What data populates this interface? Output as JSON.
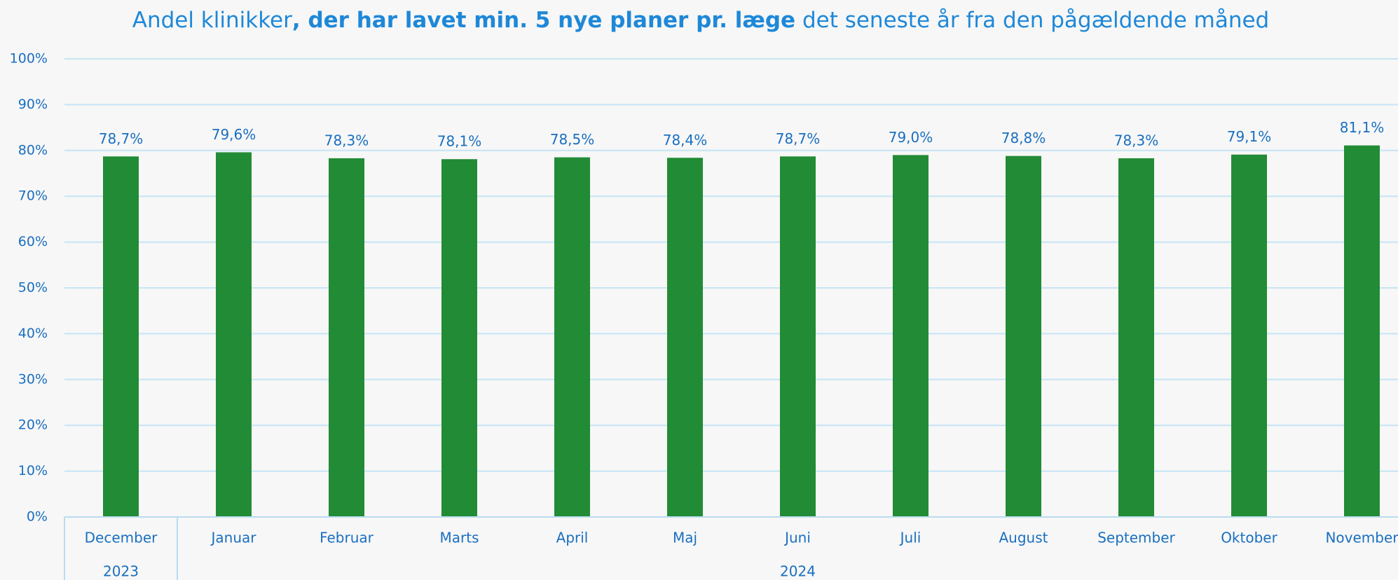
{
  "chart_data": {
    "type": "bar",
    "title": [
      "Andel klinikker",
      ", der har lavet min. 5 nye planer pr. læge",
      " det seneste år fra den pågældende måned"
    ],
    "groups": [
      {
        "label": "2023",
        "categories": [
          "December"
        ]
      },
      {
        "label": "2024",
        "categories": [
          "Januar",
          "Februar",
          "Marts",
          "April",
          "Maj",
          "Juni",
          "Juli",
          "August",
          "September",
          "Oktober",
          "November"
        ]
      }
    ],
    "values": [
      78.7,
      79.6,
      78.3,
      78.1,
      78.5,
      78.4,
      78.7,
      79.0,
      78.8,
      78.3,
      79.1,
      81.1
    ],
    "value_labels": [
      "78,7%",
      "79,6%",
      "78,3%",
      "78,1%",
      "78,5%",
      "78,4%",
      "78,7%",
      "79,0%",
      "78,8%",
      "78,3%",
      "79,1%",
      "81,1%"
    ],
    "color": "#228b35",
    "ylim": [
      0,
      100
    ],
    "yticks": [
      {
        "value": 0,
        "label": "0%"
      },
      {
        "value": 10,
        "label": "10%"
      },
      {
        "value": 20,
        "label": "20%"
      },
      {
        "value": 30,
        "label": "30%"
      },
      {
        "value": 40,
        "label": "40%"
      },
      {
        "value": 50,
        "label": "50%"
      },
      {
        "value": 60,
        "label": "60%"
      },
      {
        "value": 70,
        "label": "70%"
      },
      {
        "value": 80,
        "label": "80%"
      },
      {
        "value": 90,
        "label": "90%"
      },
      {
        "value": 100,
        "label": "100%"
      }
    ],
    "grid": true
  }
}
